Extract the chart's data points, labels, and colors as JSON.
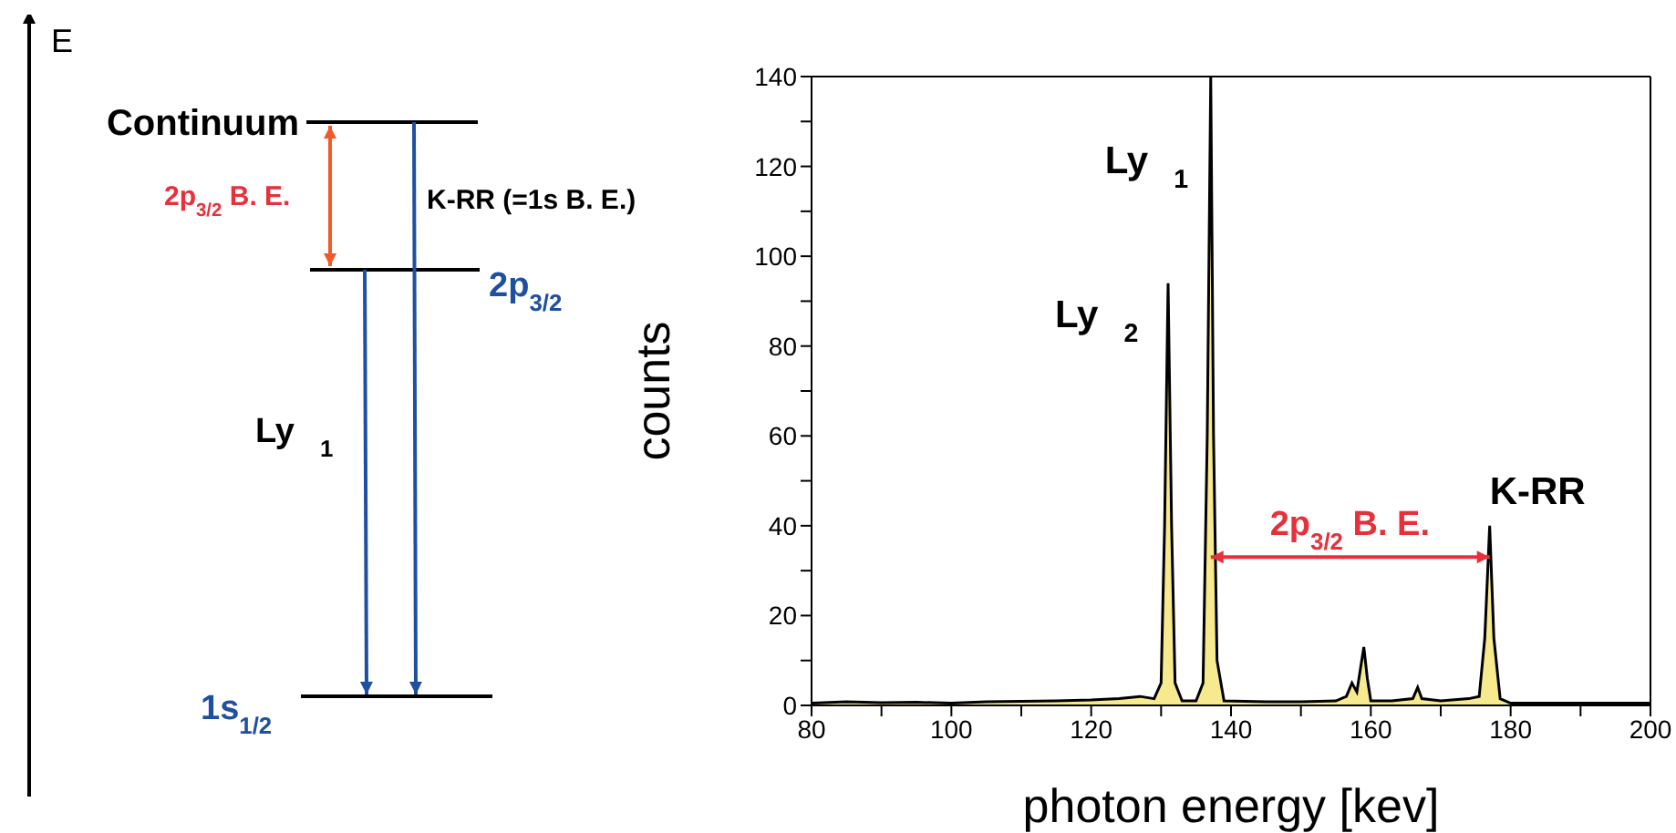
{
  "chart_data": [
    {
      "type": "other",
      "annotations": [
        "E",
        "Continuum",
        "2p$_{3/2}$ B. E.",
        "K-RR (=1s B. E.)",
        "2p$_{3/2}$",
        "Ly$_{1}$",
        "1s$_{1/2}$"
      ]
    },
    {
      "type": "area",
      "xlabel": "photon energy [kev]",
      "ylabel": "counts",
      "x": [
        80,
        85,
        90,
        95,
        100,
        105,
        110,
        115,
        120,
        124,
        127,
        129,
        130,
        130.5,
        131,
        131.5,
        132,
        133,
        135,
        136,
        136.6,
        137.1,
        137.5,
        138,
        139,
        145,
        150,
        155,
        156.5,
        157.3,
        158,
        158.5,
        159,
        159.5,
        160,
        163,
        166,
        166.7,
        167.3,
        170,
        174,
        175.5,
        176.3,
        177,
        177.6,
        178.5,
        180,
        185,
        190,
        195,
        200
      ],
      "series": [
        {
          "color": "#f7e98e",
          "values": [
            0.5,
            0.8,
            0.6,
            0.7,
            0.5,
            0.8,
            0.9,
            1,
            1.2,
            1.5,
            2,
            1.5,
            5,
            40,
            94,
            40,
            5,
            1,
            1,
            5,
            60,
            140,
            60,
            10,
            1,
            0.8,
            0.8,
            1,
            2,
            5,
            3,
            8,
            13,
            6,
            1,
            1,
            1.5,
            4,
            1.5,
            1,
            1.5,
            2,
            15,
            40,
            15,
            1.5,
            0.5,
            0.5,
            0.5,
            0.5,
            0.5
          ]
        }
      ],
      "xlim": [
        80,
        200
      ],
      "xticks": [
        80,
        {
          "value": 90,
          "label": null
        },
        100,
        {
          "value": 110,
          "label": null
        },
        120,
        {
          "value": 130,
          "label": null
        },
        140,
        {
          "value": 150,
          "label": null
        },
        160,
        {
          "value": 170,
          "label": null
        },
        180,
        {
          "value": 190,
          "label": null
        },
        200
      ],
      "ylim": [
        0,
        140
      ],
      "yticks": [
        0,
        {
          "value": 10,
          "label": null
        },
        20,
        {
          "value": 30,
          "label": null
        },
        40,
        {
          "value": 50,
          "label": null
        },
        60,
        {
          "value": 70,
          "label": null
        },
        80,
        {
          "value": 90,
          "label": null
        },
        100,
        {
          "value": 110,
          "label": null
        },
        120,
        {
          "value": 130,
          "label": null
        },
        140
      ],
      "annotations": [
        {
          "text": "Ly$_{1}$",
          "x": 137.1,
          "y": 140
        },
        {
          "text": "Ly$_{2}$",
          "x": 131,
          "y": 94
        },
        {
          "text": "K-RR",
          "x": 177,
          "y": 40
        },
        {
          "text": "2p$_{3/2}$ B. E.",
          "x": 157,
          "y": 33
        }
      ]
    }
  ]
}
